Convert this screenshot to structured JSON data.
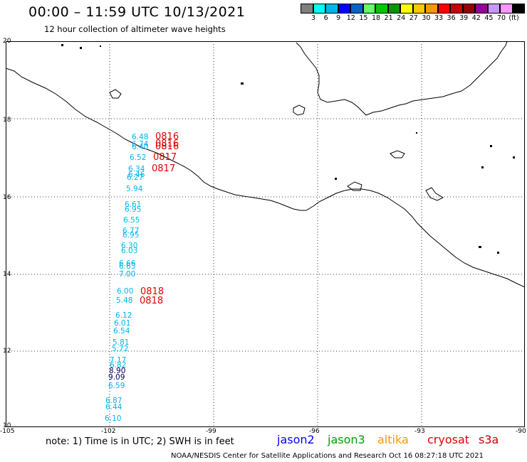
{
  "header": {
    "title": "00:00 – 11:59 UTC 10/13/2021",
    "subtitle": "12 hour collection of altimeter wave heights"
  },
  "legend": {
    "colors": [
      "#7f7f7f",
      "#00ffff",
      "#00b4f0",
      "#0000ff",
      "#0064c8",
      "#64ff64",
      "#00c800",
      "#009600",
      "#ffff00",
      "#ffc800",
      "#ff9600",
      "#ff0000",
      "#c80000",
      "#960000",
      "#960096",
      "#c896ff",
      "#ff96ff",
      "#000000"
    ],
    "labels": [
      "3",
      "6",
      "9",
      "12",
      "15",
      "18",
      "21",
      "24",
      "27",
      "30",
      "33",
      "36",
      "39",
      "42",
      "45",
      "70",
      "(ft)"
    ]
  },
  "axes": {
    "lat_labels": [
      "20",
      "18",
      "16",
      "14",
      "12",
      "10"
    ],
    "lon_labels": [
      "-105",
      "-102",
      "-99",
      "-96",
      "-93",
      "-90"
    ]
  },
  "observations": [
    {
      "v": "6.48",
      "c": "cyan"
    },
    {
      "v": "6.74",
      "c": "cyan"
    },
    {
      "v": "6.40",
      "c": "cyan"
    },
    {
      "v": "6.52",
      "c": "cyan"
    },
    {
      "v": "6.34",
      "c": "cyan"
    },
    {
      "v": "6.46",
      "c": "cyan"
    },
    {
      "v": "6.27",
      "c": "cyan"
    },
    {
      "v": "5.94",
      "c": "cyan"
    },
    {
      "v": "6.61",
      "c": "cyan"
    },
    {
      "v": "6.95",
      "c": "cyan"
    },
    {
      "v": "6.55",
      "c": "cyan"
    },
    {
      "v": "6.77",
      "c": "cyan"
    },
    {
      "v": "6.95",
      "c": "cyan"
    },
    {
      "v": "6.30",
      "c": "cyan"
    },
    {
      "v": "6.03",
      "c": "cyan"
    },
    {
      "v": "6.66",
      "c": "cyan"
    },
    {
      "v": "6.63",
      "c": "cyan"
    },
    {
      "v": "7.00",
      "c": "cyan"
    },
    {
      "v": "6.00",
      "c": "cyan"
    },
    {
      "v": "5.48",
      "c": "cyan"
    },
    {
      "v": "6.12",
      "c": "cyan"
    },
    {
      "v": "6.01",
      "c": "cyan"
    },
    {
      "v": "6.54",
      "c": "cyan"
    },
    {
      "v": "5.81",
      "c": "cyan"
    },
    {
      "v": "5.72",
      "c": "cyan"
    },
    {
      "v": "7.17",
      "c": "cyan"
    },
    {
      "v": "6.82",
      "c": "cyan"
    },
    {
      "v": "8.90",
      "c": "dark"
    },
    {
      "v": "9.09",
      "c": "dark"
    },
    {
      "v": "6.59",
      "c": "cyan"
    },
    {
      "v": "6.87",
      "c": "cyan"
    },
    {
      "v": "6.44",
      "c": "cyan"
    },
    {
      "v": "6.10",
      "c": "cyan"
    }
  ],
  "time_labels": [
    "0816",
    "0816",
    "0816",
    "0817",
    "0817",
    "0818",
    "0818"
  ],
  "footer": {
    "note": "note: 1) Time is in UTC; 2) SWH is in feet",
    "satellites": [
      {
        "name": "jason2",
        "color": "#0000ff"
      },
      {
        "name": "jason3",
        "color": "#00a000"
      },
      {
        "name": "altika",
        "color": "#ff9600"
      },
      {
        "name": "cryosat",
        "color": "#e00000"
      },
      {
        "name": "s3a",
        "color": "#c80000"
      }
    ],
    "credit": "NOAA/NESDIS Center for Satellite Applications and Research    Oct 16 08:27:18 UTC 2021"
  }
}
